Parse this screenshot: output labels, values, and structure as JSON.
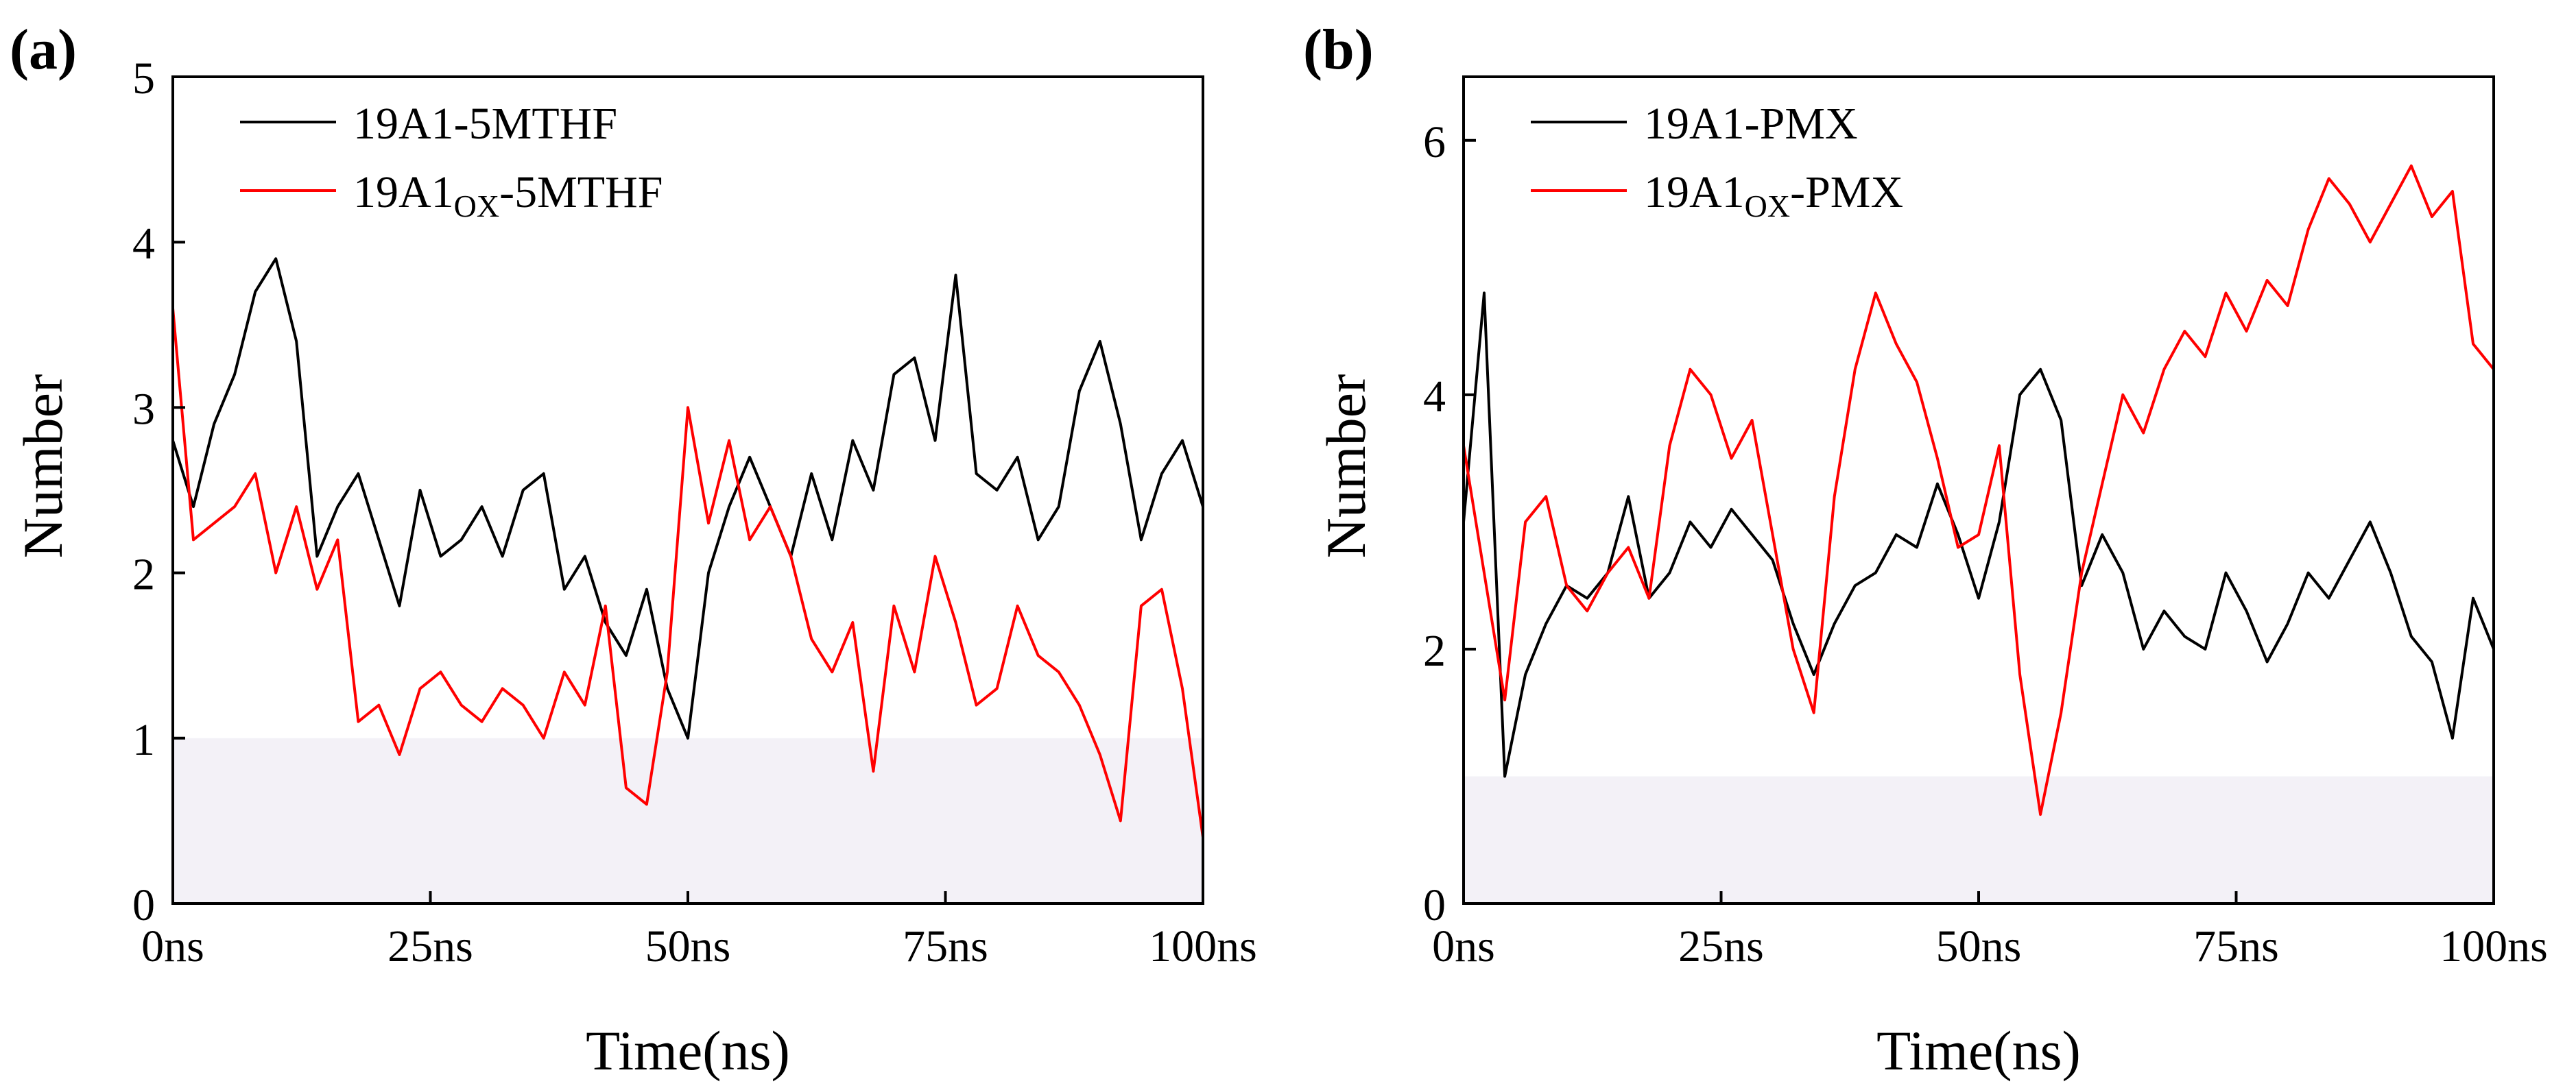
{
  "panels": [
    {
      "panel_label": "(a)",
      "y_tick_labels": [
        "0",
        "1",
        "2",
        "3",
        "4",
        "5"
      ],
      "x_tick_labels": [
        "0ns",
        "25ns",
        "50ns",
        "75ns",
        "100ns"
      ],
      "legend_entries": [
        {
          "base": "19A1",
          "sub": "",
          "suffix": "-5MTHF",
          "color": "#000000"
        },
        {
          "base": "19A1",
          "sub": "OX",
          "suffix": "-5MTHF",
          "color": "#ff0000"
        }
      ]
    },
    {
      "panel_label": "(b)",
      "y_tick_labels": [
        "0",
        "2",
        "4",
        "6"
      ],
      "x_tick_labels": [
        "0ns",
        "25ns",
        "50ns",
        "75ns",
        "100ns"
      ],
      "legend_entries": [
        {
          "base": "19A1",
          "sub": "",
          "suffix": "-PMX",
          "color": "#000000"
        },
        {
          "base": "19A1",
          "sub": "OX",
          "suffix": "-PMX",
          "color": "#ff0000"
        }
      ]
    }
  ],
  "chart_data": [
    {
      "type": "line",
      "title": "",
      "xlabel": "Time(ns)",
      "ylabel": "Number",
      "xlim": [
        0,
        100
      ],
      "ylim": [
        0,
        5
      ],
      "grid": false,
      "legend_placement": "top-left",
      "series": [
        {
          "name": "19A1-5MTHF",
          "color": "#000000",
          "x": [
            0,
            2,
            4,
            6,
            8,
            10,
            12,
            14,
            16,
            18,
            20,
            22,
            24,
            26,
            28,
            30,
            32,
            34,
            36,
            38,
            40,
            42,
            44,
            46,
            48,
            50,
            52,
            54,
            56,
            58,
            60,
            62,
            64,
            66,
            68,
            70,
            72,
            74,
            76,
            78,
            80,
            82,
            84,
            86,
            88,
            90,
            92,
            94,
            96,
            98,
            100
          ],
          "values": [
            2.8,
            2.4,
            2.9,
            3.2,
            3.7,
            3.9,
            3.4,
            2.1,
            2.4,
            2.6,
            2.2,
            1.8,
            2.5,
            2.1,
            2.2,
            2.4,
            2.1,
            2.5,
            2.6,
            1.9,
            2.1,
            1.7,
            1.5,
            1.9,
            1.3,
            1.0,
            2.0,
            2.4,
            2.7,
            2.4,
            2.1,
            2.6,
            2.2,
            2.8,
            2.5,
            3.2,
            3.3,
            2.8,
            3.8,
            2.6,
            2.5,
            2.7,
            2.2,
            2.4,
            3.1,
            3.4,
            2.9,
            2.2,
            2.6,
            2.8,
            2.4
          ]
        },
        {
          "name": "19A1OX-5MTHF",
          "color": "#ff0000",
          "x": [
            0,
            2,
            4,
            6,
            8,
            10,
            12,
            14,
            16,
            18,
            20,
            22,
            24,
            26,
            28,
            30,
            32,
            34,
            36,
            38,
            40,
            42,
            44,
            46,
            48,
            50,
            52,
            54,
            56,
            58,
            60,
            62,
            64,
            66,
            68,
            70,
            72,
            74,
            76,
            78,
            80,
            82,
            84,
            86,
            88,
            90,
            92,
            94,
            96,
            98,
            100
          ],
          "values": [
            3.6,
            2.2,
            2.3,
            2.4,
            2.6,
            2.0,
            2.4,
            1.9,
            2.2,
            1.1,
            1.2,
            0.9,
            1.3,
            1.4,
            1.2,
            1.1,
            1.3,
            1.2,
            1.0,
            1.4,
            1.2,
            1.8,
            0.7,
            0.6,
            1.4,
            3.0,
            2.3,
            2.8,
            2.2,
            2.4,
            2.1,
            1.6,
            1.4,
            1.7,
            0.8,
            1.8,
            1.4,
            2.1,
            1.7,
            1.2,
            1.3,
            1.8,
            1.5,
            1.4,
            1.2,
            0.9,
            0.5,
            1.8,
            1.9,
            1.3,
            0.4
          ]
        }
      ]
    },
    {
      "type": "line",
      "title": "",
      "xlabel": "Time(ns)",
      "ylabel": "Number",
      "xlim": [
        0,
        100
      ],
      "ylim": [
        0,
        6.5
      ],
      "grid": false,
      "legend_placement": "top-left",
      "series": [
        {
          "name": "19A1-PMX",
          "color": "#000000",
          "x": [
            0,
            2,
            4,
            6,
            8,
            10,
            12,
            14,
            16,
            18,
            20,
            22,
            24,
            26,
            28,
            30,
            32,
            34,
            36,
            38,
            40,
            42,
            44,
            46,
            48,
            50,
            52,
            54,
            56,
            58,
            60,
            62,
            64,
            66,
            68,
            70,
            72,
            74,
            76,
            78,
            80,
            82,
            84,
            86,
            88,
            90,
            92,
            94,
            96,
            98,
            100
          ],
          "values": [
            3.0,
            4.8,
            1.0,
            1.8,
            2.2,
            2.5,
            2.4,
            2.6,
            3.2,
            2.4,
            2.6,
            3.0,
            2.8,
            3.1,
            2.9,
            2.7,
            2.2,
            1.8,
            2.2,
            2.5,
            2.6,
            2.9,
            2.8,
            3.3,
            2.9,
            2.4,
            3.0,
            4.0,
            4.2,
            3.8,
            2.5,
            2.9,
            2.6,
            2.0,
            2.3,
            2.1,
            2.0,
            2.6,
            2.3,
            1.9,
            2.2,
            2.6,
            2.4,
            2.7,
            3.0,
            2.6,
            2.1,
            1.9,
            1.3,
            2.4,
            2.0
          ]
        },
        {
          "name": "19A1OX-PMX",
          "color": "#ff0000",
          "x": [
            0,
            2,
            4,
            6,
            8,
            10,
            12,
            14,
            16,
            18,
            20,
            22,
            24,
            26,
            28,
            30,
            32,
            34,
            36,
            38,
            40,
            42,
            44,
            46,
            48,
            50,
            52,
            54,
            56,
            58,
            60,
            62,
            64,
            66,
            68,
            70,
            72,
            74,
            76,
            78,
            80,
            82,
            84,
            86,
            88,
            90,
            92,
            94,
            96,
            98,
            100
          ],
          "values": [
            3.6,
            2.6,
            1.6,
            3.0,
            3.2,
            2.5,
            2.3,
            2.6,
            2.8,
            2.4,
            3.6,
            4.2,
            4.0,
            3.5,
            3.8,
            2.9,
            2.0,
            1.5,
            3.2,
            4.2,
            4.8,
            4.4,
            4.1,
            3.5,
            2.8,
            2.9,
            3.6,
            1.8,
            0.7,
            1.5,
            2.6,
            3.3,
            4.0,
            3.7,
            4.2,
            4.5,
            4.3,
            4.8,
            4.5,
            4.9,
            4.7,
            5.3,
            5.7,
            5.5,
            5.2,
            5.5,
            5.8,
            5.4,
            5.6,
            4.4,
            4.2
          ]
        }
      ]
    }
  ]
}
